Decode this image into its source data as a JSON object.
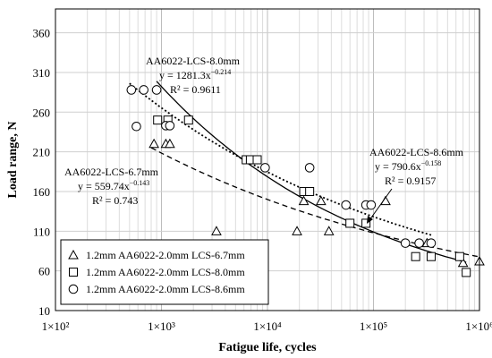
{
  "chart_data": {
    "type": "scatter",
    "x_scale": "log",
    "xlabel": "Fatigue life, cycles",
    "ylabel": "Load range, N",
    "xlim": [
      100,
      1000000
    ],
    "ylim": [
      10,
      390
    ],
    "x_ticks": [
      100,
      1000,
      10000,
      100000,
      1000000
    ],
    "x_tick_labels": [
      "1×10²",
      "1×10³",
      "1×10⁴",
      "1×10⁵",
      "1×10⁶"
    ],
    "y_ticks": [
      10,
      60,
      110,
      160,
      210,
      260,
      310,
      360
    ],
    "grid": true,
    "legend_position": "bottom-left",
    "series": [
      {
        "name": "1.2mm AA6022-2.0mm LCS-6.7mm",
        "marker": "triangle",
        "points": [
          [
            850,
            220
          ],
          [
            1100,
            220
          ],
          [
            1200,
            220
          ],
          [
            3300,
            110
          ],
          [
            19000,
            110
          ],
          [
            22000,
            148
          ],
          [
            32000,
            148
          ],
          [
            38000,
            110
          ],
          [
            130000,
            148
          ],
          [
            320000,
            95
          ],
          [
            700000,
            70
          ],
          [
            1000000,
            72
          ]
        ]
      },
      {
        "name": "1.2mm AA6022-2.0mm LCS-8.0mm",
        "marker": "square",
        "points": [
          [
            920,
            250
          ],
          [
            1150,
            250
          ],
          [
            1800,
            250
          ],
          [
            6300,
            200
          ],
          [
            6900,
            200
          ],
          [
            8000,
            200
          ],
          [
            22000,
            160
          ],
          [
            25000,
            160
          ],
          [
            60000,
            120
          ],
          [
            85000,
            120
          ],
          [
            250000,
            78
          ],
          [
            350000,
            78
          ],
          [
            650000,
            78
          ],
          [
            750000,
            58
          ]
        ]
      },
      {
        "name": "1.2mm AA6022-2.0mm LCS-8.6mm",
        "marker": "circle",
        "points": [
          [
            520,
            288
          ],
          [
            580,
            242
          ],
          [
            680,
            288
          ],
          [
            900,
            288
          ],
          [
            1100,
            243
          ],
          [
            1200,
            243
          ],
          [
            9500,
            190
          ],
          [
            25000,
            190
          ],
          [
            55000,
            143
          ],
          [
            85000,
            143
          ],
          [
            95000,
            143
          ],
          [
            200000,
            95
          ],
          [
            270000,
            95
          ],
          [
            350000,
            95
          ]
        ]
      }
    ],
    "fits": [
      {
        "name": "AA6022-LCS-6.7mm",
        "equation": "y = 559.74x",
        "exponent": "−0.143",
        "r2": "R² = 0.743",
        "a": 559.74,
        "b": -0.143,
        "x_range": [
          800,
          1000000
        ],
        "style": "dashed"
      },
      {
        "name": "AA6022-LCS-8.0mm",
        "equation": "y = 1281.3x",
        "exponent": "−0.214",
        "r2": "R² = 0.9611",
        "a": 1281.3,
        "b": -0.214,
        "x_range": [
          900,
          750000
        ],
        "style": "solid"
      },
      {
        "name": "AA6022-LCS-8.6mm",
        "equation": "y = 790.6x",
        "exponent": "−0.158",
        "r2": "R² = 0.9157",
        "a": 790.6,
        "b": -0.158,
        "x_range": [
          500,
          350000
        ],
        "style": "dotted"
      }
    ]
  }
}
